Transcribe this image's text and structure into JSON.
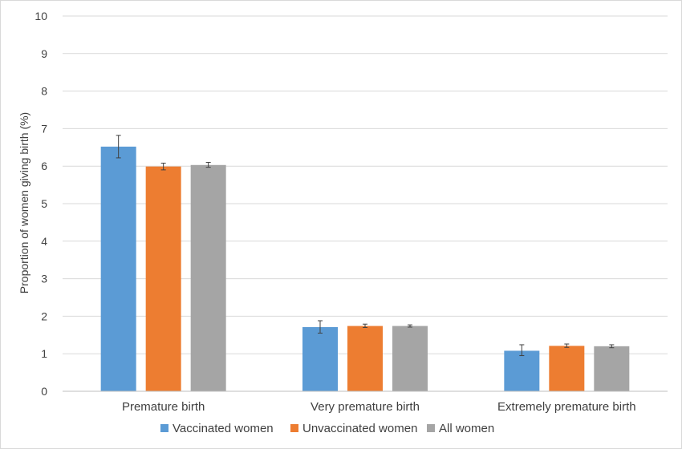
{
  "chart_data": {
    "type": "bar",
    "title": "",
    "xlabel": "",
    "ylabel": "Proportion of women giving birth (%)",
    "ylim": [
      0,
      10
    ],
    "yticks": [
      0,
      1,
      2,
      3,
      4,
      5,
      6,
      7,
      8,
      9,
      10
    ],
    "grid": true,
    "legend_position": "bottom",
    "categories": [
      "Premature birth",
      "Very premature birth",
      "Extremely premature birth"
    ],
    "series": [
      {
        "name": "Vaccinated women",
        "color": "#5b9bd5",
        "values": [
          6.52,
          1.71,
          1.08
        ],
        "error_low": [
          6.22,
          1.55,
          0.95
        ],
        "error_high": [
          6.82,
          1.88,
          1.24
        ]
      },
      {
        "name": "Unvaccinated women",
        "color": "#ed7d31",
        "values": [
          5.99,
          1.74,
          1.21
        ],
        "error_low": [
          5.9,
          1.7,
          1.17
        ],
        "error_high": [
          6.08,
          1.79,
          1.26
        ]
      },
      {
        "name": "All women",
        "color": "#a5a5a5",
        "values": [
          6.03,
          1.74,
          1.2
        ],
        "error_low": [
          5.97,
          1.71,
          1.16
        ],
        "error_high": [
          6.1,
          1.77,
          1.24
        ]
      }
    ]
  }
}
